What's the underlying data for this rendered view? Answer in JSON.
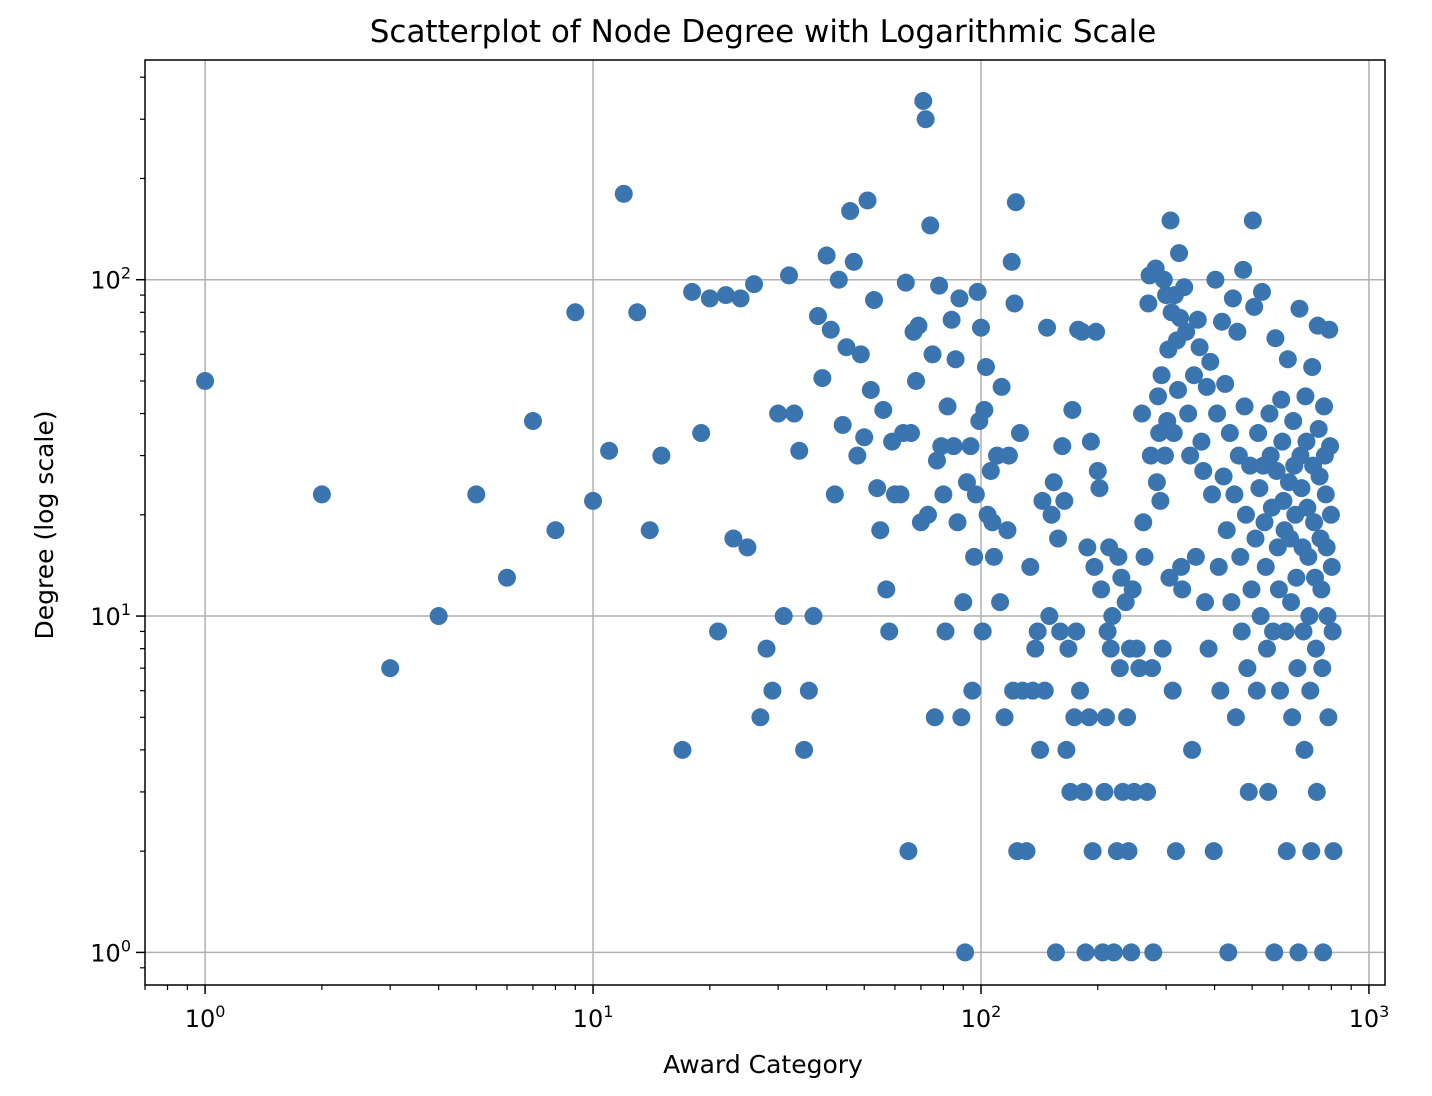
{
  "chart_data": {
    "type": "scatter",
    "title": "Scatterplot of Node Degree with Logarithmic Scale",
    "xlabel": "Award Category",
    "ylabel": "Degree (log scale)",
    "xscale": "log",
    "yscale": "log",
    "xlim": [
      0.7,
      1100
    ],
    "ylim": [
      0.8,
      450
    ],
    "grid": true,
    "marker_color": "#3a75b0",
    "x_ticks": [
      {
        "value": 1,
        "base": "10",
        "exp": "0"
      },
      {
        "value": 10,
        "base": "10",
        "exp": "1"
      },
      {
        "value": 100,
        "base": "10",
        "exp": "2"
      },
      {
        "value": 1000,
        "base": "10",
        "exp": "3"
      }
    ],
    "y_ticks": [
      {
        "value": 1,
        "base": "10",
        "exp": "0"
      },
      {
        "value": 10,
        "base": "10",
        "exp": "1"
      },
      {
        "value": 100,
        "base": "10",
        "exp": "2"
      }
    ],
    "points": [
      [
        1,
        50
      ],
      [
        2,
        23
      ],
      [
        3,
        7
      ],
      [
        4,
        10
      ],
      [
        5,
        23
      ],
      [
        6,
        13
      ],
      [
        7,
        38
      ],
      [
        8,
        18
      ],
      [
        9,
        80
      ],
      [
        10,
        22
      ],
      [
        11,
        31
      ],
      [
        12,
        180
      ],
      [
        13,
        80
      ],
      [
        14,
        18
      ],
      [
        15,
        30
      ],
      [
        17,
        4
      ],
      [
        18,
        92
      ],
      [
        19,
        35
      ],
      [
        20,
        88
      ],
      [
        21,
        9
      ],
      [
        22,
        90
      ],
      [
        23,
        17
      ],
      [
        24,
        88
      ],
      [
        25,
        16
      ],
      [
        26,
        97
      ],
      [
        27,
        5
      ],
      [
        28,
        8
      ],
      [
        29,
        6
      ],
      [
        30,
        40
      ],
      [
        31,
        10
      ],
      [
        32,
        103
      ],
      [
        33,
        40
      ],
      [
        34,
        31
      ],
      [
        35,
        4
      ],
      [
        36,
        6
      ],
      [
        37,
        10
      ],
      [
        38,
        78
      ],
      [
        39,
        51
      ],
      [
        40,
        118
      ],
      [
        41,
        71
      ],
      [
        42,
        23
      ],
      [
        43,
        100
      ],
      [
        44,
        37
      ],
      [
        45,
        63
      ],
      [
        46,
        160
      ],
      [
        47,
        113
      ],
      [
        48,
        30
      ],
      [
        49,
        60
      ],
      [
        50,
        34
      ],
      [
        51,
        172
      ],
      [
        52,
        47
      ],
      [
        53,
        87
      ],
      [
        54,
        24
      ],
      [
        55,
        18
      ],
      [
        56,
        41
      ],
      [
        57,
        12
      ],
      [
        58,
        9
      ],
      [
        59,
        33
      ],
      [
        60,
        23
      ],
      [
        62,
        23
      ],
      [
        63,
        35
      ],
      [
        64,
        98
      ],
      [
        65,
        2
      ],
      [
        66,
        35
      ],
      [
        67,
        70
      ],
      [
        68,
        50
      ],
      [
        69,
        73
      ],
      [
        70,
        19
      ],
      [
        71,
        340
      ],
      [
        72,
        300
      ],
      [
        73,
        20
      ],
      [
        74,
        145
      ],
      [
        75,
        60
      ],
      [
        76,
        5
      ],
      [
        77,
        29
      ],
      [
        78,
        96
      ],
      [
        79,
        32
      ],
      [
        80,
        23
      ],
      [
        81,
        9
      ],
      [
        82,
        42
      ],
      [
        84,
        76
      ],
      [
        85,
        32
      ],
      [
        86,
        58
      ],
      [
        87,
        19
      ],
      [
        88,
        88
      ],
      [
        89,
        5
      ],
      [
        90,
        11
      ],
      [
        91,
        1
      ],
      [
        92,
        25
      ],
      [
        94,
        32
      ],
      [
        95,
        6
      ],
      [
        96,
        15
      ],
      [
        97,
        23
      ],
      [
        98,
        92
      ],
      [
        99,
        38
      ],
      [
        100,
        72
      ],
      [
        101,
        9
      ],
      [
        102,
        41
      ],
      [
        103,
        55
      ],
      [
        104,
        20
      ],
      [
        106,
        27
      ],
      [
        107,
        19
      ],
      [
        108,
        15
      ],
      [
        110,
        30
      ],
      [
        112,
        11
      ],
      [
        113,
        48
      ],
      [
        115,
        5
      ],
      [
        117,
        18
      ],
      [
        118,
        30
      ],
      [
        120,
        113
      ],
      [
        121,
        6
      ],
      [
        122,
        85
      ],
      [
        123,
        170
      ],
      [
        124,
        2
      ],
      [
        126,
        35
      ],
      [
        128,
        6
      ],
      [
        131,
        2
      ],
      [
        134,
        14
      ],
      [
        136,
        6
      ],
      [
        138,
        8
      ],
      [
        140,
        9
      ],
      [
        142,
        4
      ],
      [
        144,
        22
      ],
      [
        146,
        6
      ],
      [
        148,
        72
      ],
      [
        150,
        10
      ],
      [
        152,
        20
      ],
      [
        154,
        25
      ],
      [
        156,
        1
      ],
      [
        158,
        17
      ],
      [
        160,
        9
      ],
      [
        162,
        32
      ],
      [
        164,
        22
      ],
      [
        166,
        4
      ],
      [
        168,
        8
      ],
      [
        170,
        3
      ],
      [
        172,
        41
      ],
      [
        174,
        5
      ],
      [
        176,
        9
      ],
      [
        178,
        71
      ],
      [
        180,
        6
      ],
      [
        182,
        70
      ],
      [
        184,
        3
      ],
      [
        186,
        1
      ],
      [
        188,
        16
      ],
      [
        190,
        5
      ],
      [
        192,
        33
      ],
      [
        194,
        2
      ],
      [
        196,
        14
      ],
      [
        198,
        70
      ],
      [
        200,
        27
      ],
      [
        202,
        24
      ],
      [
        204,
        12
      ],
      [
        206,
        1
      ],
      [
        208,
        3
      ],
      [
        210,
        5
      ],
      [
        212,
        9
      ],
      [
        214,
        16
      ],
      [
        216,
        8
      ],
      [
        218,
        10
      ],
      [
        220,
        1
      ],
      [
        224,
        2
      ],
      [
        226,
        15
      ],
      [
        228,
        7
      ],
      [
        230,
        13
      ],
      [
        232,
        3
      ],
      [
        236,
        11
      ],
      [
        238,
        5
      ],
      [
        240,
        2
      ],
      [
        242,
        8
      ],
      [
        244,
        1
      ],
      [
        246,
        12
      ],
      [
        248,
        3
      ],
      [
        252,
        8
      ],
      [
        256,
        7
      ],
      [
        260,
        40
      ],
      [
        262,
        19
      ],
      [
        264,
        15
      ],
      [
        268,
        3
      ],
      [
        270,
        85
      ],
      [
        272,
        103
      ],
      [
        274,
        30
      ],
      [
        276,
        7
      ],
      [
        278,
        1
      ],
      [
        282,
        108
      ],
      [
        284,
        25
      ],
      [
        286,
        45
      ],
      [
        288,
        35
      ],
      [
        290,
        22
      ],
      [
        292,
        52
      ],
      [
        294,
        8
      ],
      [
        296,
        100
      ],
      [
        298,
        30
      ],
      [
        300,
        90
      ],
      [
        302,
        38
      ],
      [
        304,
        62
      ],
      [
        306,
        13
      ],
      [
        308,
        150
      ],
      [
        310,
        80
      ],
      [
        312,
        6
      ],
      [
        314,
        35
      ],
      [
        316,
        90
      ],
      [
        318,
        2
      ],
      [
        320,
        66
      ],
      [
        322,
        47
      ],
      [
        324,
        120
      ],
      [
        326,
        77
      ],
      [
        328,
        14
      ],
      [
        330,
        12
      ],
      [
        334,
        95
      ],
      [
        338,
        70
      ],
      [
        342,
        40
      ],
      [
        346,
        30
      ],
      [
        350,
        4
      ],
      [
        354,
        52
      ],
      [
        358,
        15
      ],
      [
        362,
        76
      ],
      [
        366,
        63
      ],
      [
        370,
        33
      ],
      [
        374,
        27
      ],
      [
        378,
        11
      ],
      [
        382,
        48
      ],
      [
        386,
        8
      ],
      [
        390,
        57
      ],
      [
        394,
        23
      ],
      [
        398,
        2
      ],
      [
        402,
        100
      ],
      [
        406,
        40
      ],
      [
        410,
        14
      ],
      [
        414,
        6
      ],
      [
        418,
        75
      ],
      [
        422,
        26
      ],
      [
        426,
        49
      ],
      [
        430,
        18
      ],
      [
        434,
        1
      ],
      [
        438,
        35
      ],
      [
        442,
        11
      ],
      [
        446,
        88
      ],
      [
        450,
        23
      ],
      [
        454,
        5
      ],
      [
        458,
        70
      ],
      [
        462,
        30
      ],
      [
        466,
        15
      ],
      [
        470,
        9
      ],
      [
        474,
        107
      ],
      [
        478,
        42
      ],
      [
        482,
        20
      ],
      [
        486,
        7
      ],
      [
        490,
        3
      ],
      [
        494,
        28
      ],
      [
        498,
        12
      ],
      [
        502,
        150
      ],
      [
        506,
        83
      ],
      [
        510,
        17
      ],
      [
        514,
        6
      ],
      [
        518,
        35
      ],
      [
        522,
        24
      ],
      [
        526,
        10
      ],
      [
        530,
        92
      ],
      [
        534,
        28
      ],
      [
        538,
        19
      ],
      [
        542,
        14
      ],
      [
        546,
        8
      ],
      [
        550,
        3
      ],
      [
        554,
        40
      ],
      [
        558,
        30
      ],
      [
        562,
        21
      ],
      [
        566,
        9
      ],
      [
        570,
        1
      ],
      [
        574,
        67
      ],
      [
        578,
        27
      ],
      [
        582,
        16
      ],
      [
        586,
        12
      ],
      [
        590,
        6
      ],
      [
        594,
        44
      ],
      [
        598,
        33
      ],
      [
        602,
        22
      ],
      [
        606,
        18
      ],
      [
        610,
        9
      ],
      [
        614,
        2
      ],
      [
        618,
        58
      ],
      [
        622,
        25
      ],
      [
        626,
        17
      ],
      [
        630,
        11
      ],
      [
        634,
        5
      ],
      [
        638,
        38
      ],
      [
        642,
        28
      ],
      [
        646,
        20
      ],
      [
        650,
        13
      ],
      [
        654,
        7
      ],
      [
        658,
        1
      ],
      [
        662,
        82
      ],
      [
        666,
        30
      ],
      [
        670,
        24
      ],
      [
        674,
        16
      ],
      [
        678,
        9
      ],
      [
        682,
        4
      ],
      [
        686,
        45
      ],
      [
        690,
        33
      ],
      [
        694,
        21
      ],
      [
        698,
        15
      ],
      [
        702,
        10
      ],
      [
        706,
        6
      ],
      [
        710,
        2
      ],
      [
        714,
        55
      ],
      [
        718,
        28
      ],
      [
        722,
        19
      ],
      [
        726,
        13
      ],
      [
        730,
        8
      ],
      [
        734,
        3
      ],
      [
        738,
        73
      ],
      [
        742,
        36
      ],
      [
        746,
        26
      ],
      [
        750,
        17
      ],
      [
        754,
        12
      ],
      [
        758,
        7
      ],
      [
        762,
        1
      ],
      [
        766,
        42
      ],
      [
        770,
        30
      ],
      [
        774,
        23
      ],
      [
        778,
        16
      ],
      [
        782,
        10
      ],
      [
        786,
        5
      ],
      [
        790,
        71
      ],
      [
        794,
        32
      ],
      [
        798,
        20
      ],
      [
        802,
        14
      ],
      [
        806,
        9
      ],
      [
        810,
        2
      ]
    ]
  }
}
